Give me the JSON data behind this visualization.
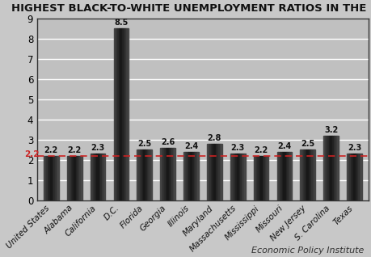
{
  "title": "HIGHEST BLACK-TO-WHITE UNEMPLOYMENT RATIOS IN THE U.S.",
  "categories": [
    "United States",
    "Alabama",
    "California",
    "D.C.",
    "Florida",
    "Georgia",
    "Illinois",
    "Maryland",
    "Massachusetts",
    "Mississippi",
    "Missouri",
    "New Jersey",
    "S. Carolina",
    "Texas"
  ],
  "values": [
    2.2,
    2.2,
    2.3,
    8.5,
    2.5,
    2.6,
    2.4,
    2.8,
    2.3,
    2.2,
    2.4,
    2.5,
    3.2,
    2.3
  ],
  "bar_color": "#1a1a1a",
  "background_color": "#c8c8c8",
  "plot_bg_color": "#c0c0c0",
  "reference_line_y": 2.2,
  "reference_line_color": "#cc2222",
  "ylim": [
    0,
    9
  ],
  "yticks": [
    0,
    1,
    2,
    3,
    4,
    5,
    6,
    7,
    8,
    9
  ],
  "title_fontsize": 9.5,
  "label_fontsize": 7.0,
  "tick_fontsize": 8.5,
  "watermark": "Economic Policy Institute",
  "watermark_fontsize": 8
}
